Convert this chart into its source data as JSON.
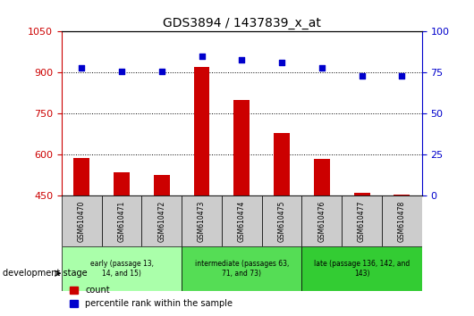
{
  "title": "GDS3894 / 1437839_x_at",
  "samples": [
    "GSM610470",
    "GSM610471",
    "GSM610472",
    "GSM610473",
    "GSM610474",
    "GSM610475",
    "GSM610476",
    "GSM610477",
    "GSM610478"
  ],
  "counts": [
    590,
    535,
    528,
    920,
    800,
    680,
    585,
    462,
    455
  ],
  "percentiles": [
    78,
    76,
    76,
    85,
    83,
    81,
    78,
    73,
    73
  ],
  "ylim_left": [
    450,
    1050
  ],
  "ylim_right": [
    0,
    100
  ],
  "yticks_left": [
    450,
    600,
    750,
    900,
    1050
  ],
  "yticks_right": [
    0,
    25,
    50,
    75,
    100
  ],
  "bar_color": "#cc0000",
  "dot_color": "#0000cc",
  "dev_stage_label": "development stage",
  "legend_count_label": "count",
  "legend_pct_label": "percentile rank within the sample",
  "tick_area_color": "#cccccc",
  "bar_width": 0.4,
  "group_colors": [
    "#aaffaa",
    "#55dd55",
    "#33cc33"
  ],
  "group_labels": [
    "early (passage 13,\n14, and 15)",
    "intermediate (passages 63,\n71, and 73)",
    "late (passage 136, 142, and\n143)"
  ],
  "group_ranges": [
    [
      0,
      3
    ],
    [
      3,
      6
    ],
    [
      6,
      9
    ]
  ]
}
